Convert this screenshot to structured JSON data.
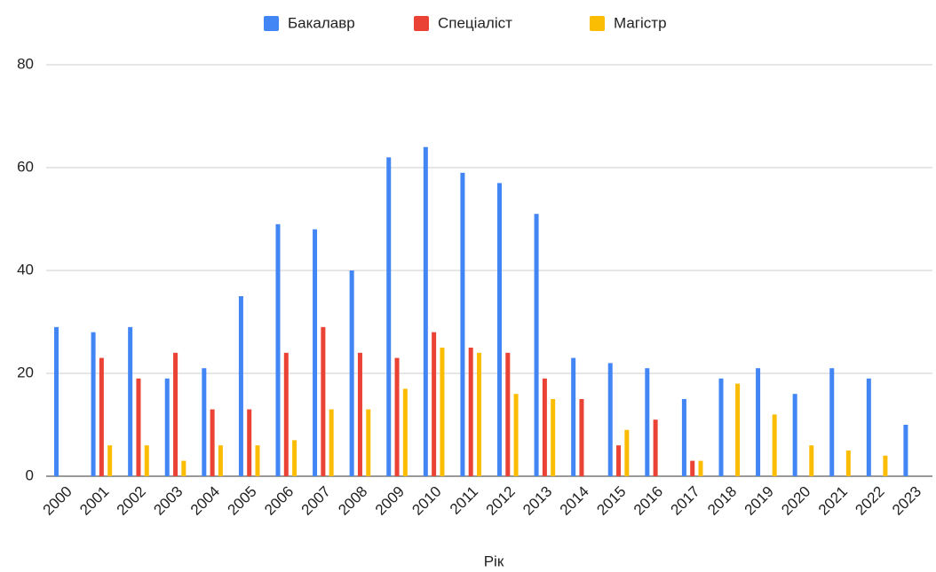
{
  "chart_data": {
    "type": "bar",
    "x_label": "Рік",
    "categories": [
      "2000",
      "2001",
      "2002",
      "2003",
      "2004",
      "2005",
      "2006",
      "2007",
      "2008",
      "2009",
      "2010",
      "2011",
      "2012",
      "2013",
      "2014",
      "2015",
      "2016",
      "2017",
      "2018",
      "2019",
      "2020",
      "2021",
      "2022",
      "2023"
    ],
    "series": [
      {
        "name": "Бакалавр",
        "color": "#4285f4",
        "values": [
          29,
          28,
          29,
          19,
          21,
          35,
          49,
          48,
          40,
          62,
          64,
          59,
          57,
          51,
          23,
          22,
          21,
          15,
          19,
          21,
          16,
          21,
          19,
          10
        ]
      },
      {
        "name": "Спеціаліст",
        "color": "#ea4335",
        "values": [
          null,
          23,
          19,
          24,
          13,
          13,
          24,
          29,
          24,
          23,
          28,
          25,
          24,
          19,
          15,
          6,
          11,
          3,
          null,
          null,
          null,
          null,
          null,
          null
        ]
      },
      {
        "name": "Магістр",
        "color": "#fbbc04",
        "values": [
          null,
          6,
          6,
          3,
          6,
          6,
          7,
          13,
          13,
          17,
          25,
          24,
          16,
          15,
          null,
          9,
          null,
          3,
          18,
          12,
          6,
          5,
          4,
          null
        ]
      }
    ],
    "ylim": [
      0,
      80
    ],
    "yticks": [
      0,
      20,
      40,
      60,
      80
    ],
    "grid": true,
    "legend": "top"
  }
}
